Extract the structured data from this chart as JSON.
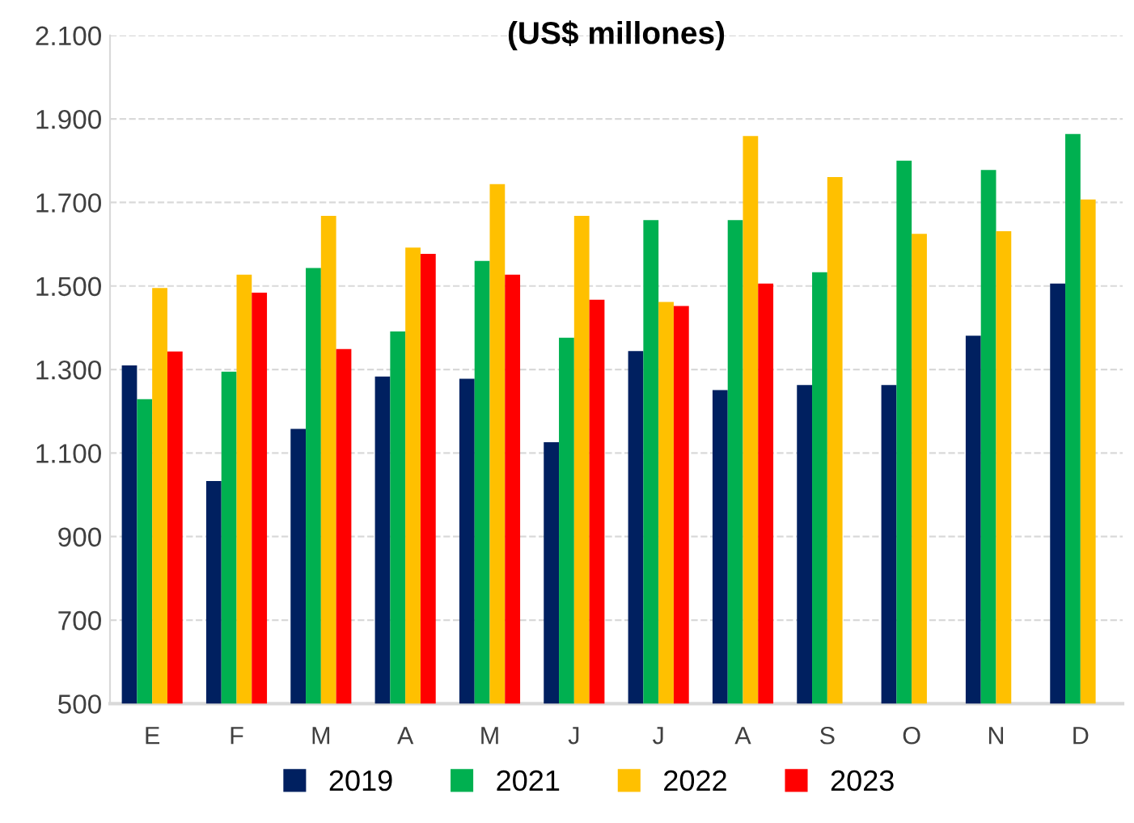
{
  "chart_data": {
    "type": "bar",
    "title": "(US$ millones)",
    "categories": [
      "E",
      "F",
      "M",
      "A",
      "M",
      "J",
      "J",
      "A",
      "S",
      "O",
      "N",
      "D"
    ],
    "series": [
      {
        "name": "2019",
        "color": "#002060",
        "values": [
          1310,
          1033,
          1158,
          1283,
          1278,
          1126,
          1344,
          1251,
          1263,
          1263,
          1381,
          1506
        ]
      },
      {
        "name": "2021",
        "color": "#00b050",
        "values": [
          1229,
          1295,
          1543,
          1391,
          1560,
          1376,
          1658,
          1658,
          1533,
          1800,
          1778,
          1864
        ]
      },
      {
        "name": "2022",
        "color": "#ffc000",
        "values": [
          1495,
          1527,
          1668,
          1592,
          1744,
          1668,
          1462,
          1859,
          1761,
          1625,
          1631,
          1707
        ]
      },
      {
        "name": "2023",
        "color": "#ff0000",
        "values": [
          1343,
          1484,
          1349,
          1577,
          1527,
          1467,
          1452,
          1506,
          null,
          null,
          null,
          null
        ]
      }
    ],
    "ylim": [
      500,
      2100
    ],
    "yticks": [
      {
        "value": 500,
        "label": "500"
      },
      {
        "value": 700,
        "label": "700"
      },
      {
        "value": 900,
        "label": "900"
      },
      {
        "value": 1100,
        "label": "1.100"
      },
      {
        "value": 1300,
        "label": "1.300"
      },
      {
        "value": 1500,
        "label": "1.500"
      },
      {
        "value": 1700,
        "label": "1.700"
      },
      {
        "value": 1900,
        "label": "1.900"
      },
      {
        "value": 2100,
        "label": "2.100"
      }
    ],
    "grid": "y",
    "legend": "bottom"
  }
}
